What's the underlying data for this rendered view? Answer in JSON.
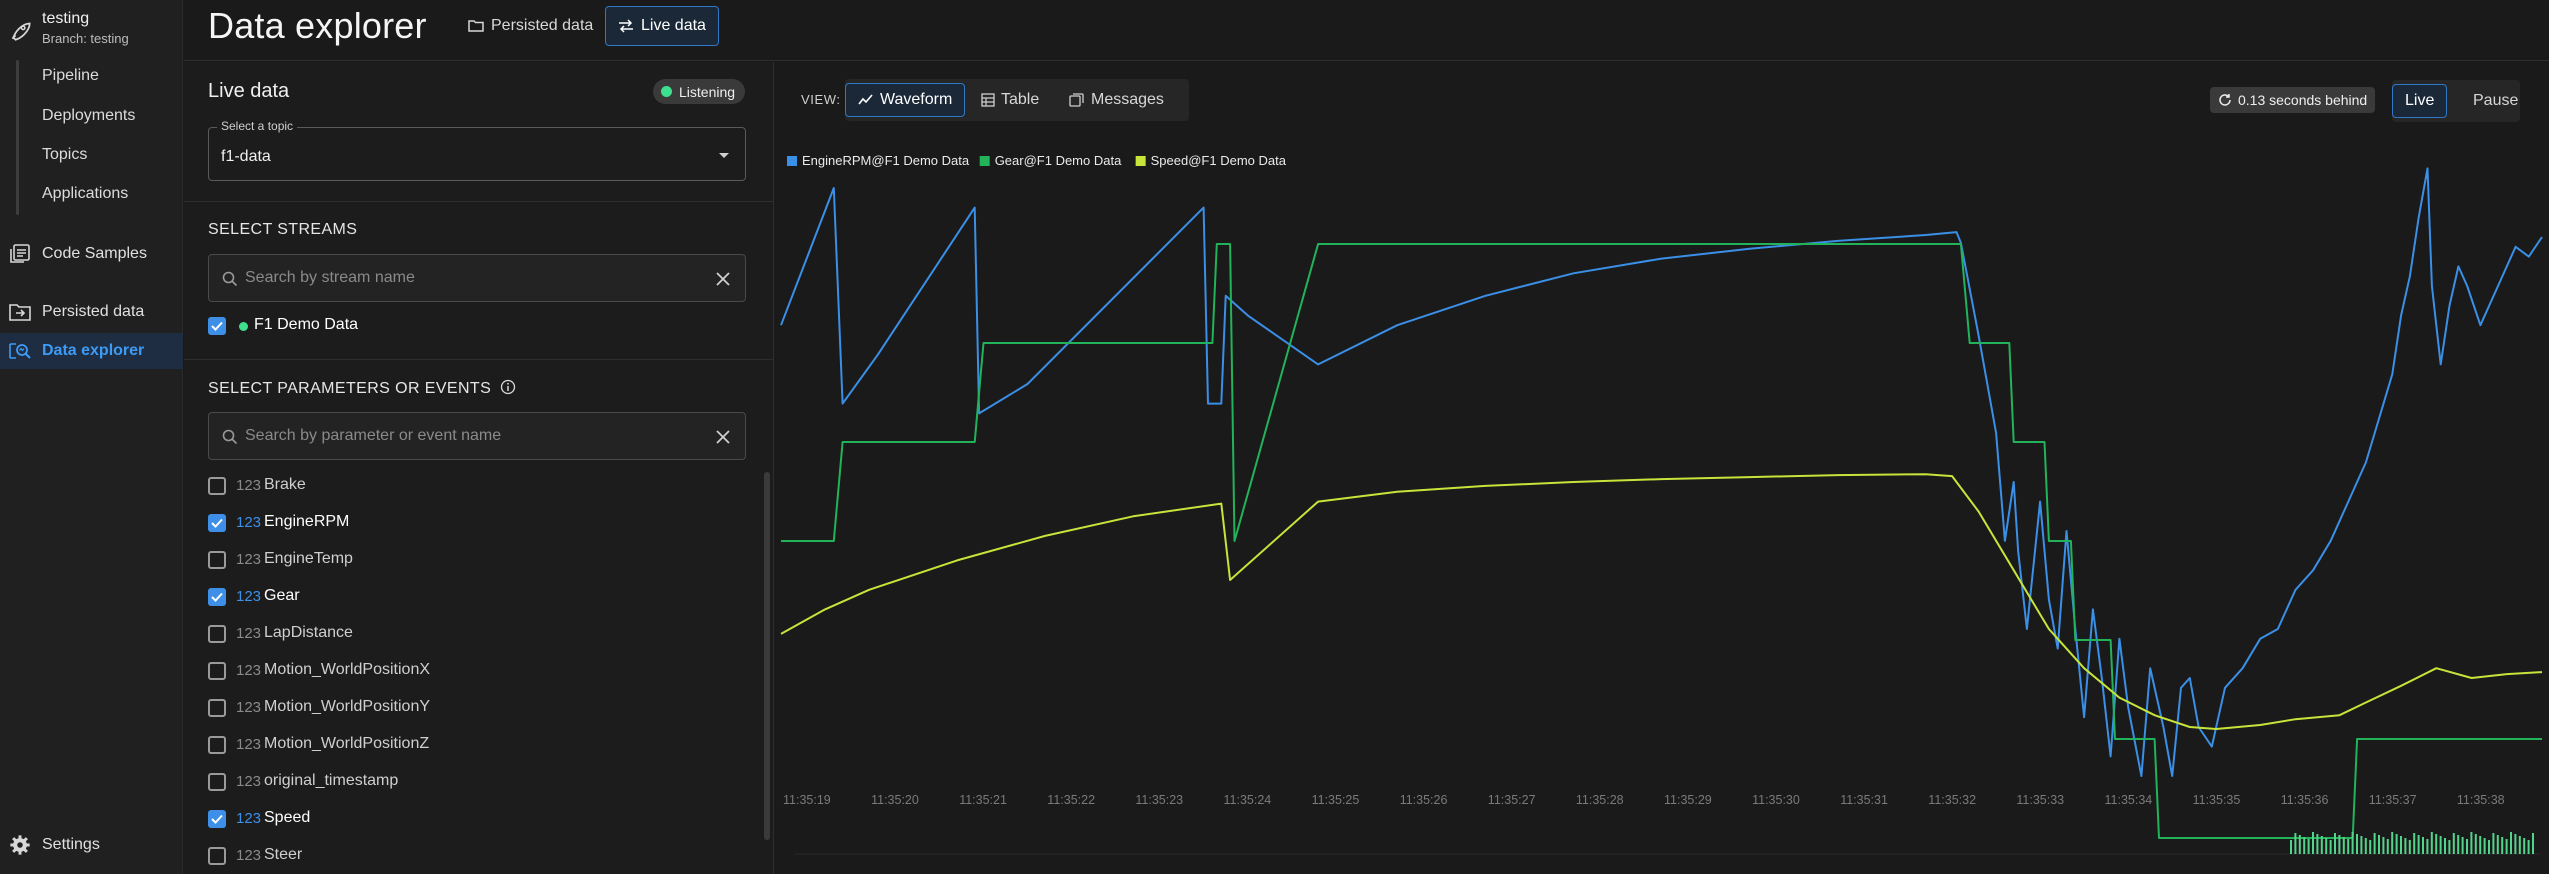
{
  "app": {
    "project_name": "testing",
    "branch": "Branch: testing"
  },
  "sidebar": {
    "sub_items": [
      {
        "label": "Pipeline"
      },
      {
        "label": "Deployments"
      },
      {
        "label": "Topics"
      },
      {
        "label": "Applications"
      }
    ],
    "items": [
      {
        "label": "Code Samples",
        "icon": "code-samples-icon"
      },
      {
        "label": "Persisted data",
        "icon": "persisted-data-icon"
      },
      {
        "label": "Data explorer",
        "icon": "data-explorer-icon",
        "active": true
      }
    ],
    "settings_label": "Settings"
  },
  "header": {
    "title": "Data explorer",
    "tabs": [
      {
        "label": "Persisted data",
        "icon": "folder-icon",
        "active": false
      },
      {
        "label": "Live data",
        "icon": "swap-arrows-icon",
        "active": true
      }
    ]
  },
  "left_panel": {
    "title": "Live data",
    "status_badge": "Listening",
    "topic_select": {
      "label": "Select a topic",
      "value": "f1-data"
    },
    "streams": {
      "heading": "SELECT STREAMS",
      "search_placeholder": "Search by stream name",
      "items": [
        {
          "label": "F1 Demo Data",
          "checked": true,
          "status_color": "#3ee08f"
        }
      ]
    },
    "parameters": {
      "heading": "SELECT PARAMETERS OR EVENTS",
      "search_placeholder": "Search by parameter or event name",
      "type_glyph": "123",
      "items": [
        {
          "label": "Brake",
          "checked": false
        },
        {
          "label": "EngineRPM",
          "checked": true
        },
        {
          "label": "EngineTemp",
          "checked": false
        },
        {
          "label": "Gear",
          "checked": true
        },
        {
          "label": "LapDistance",
          "checked": false
        },
        {
          "label": "Motion_WorldPositionX",
          "checked": false
        },
        {
          "label": "Motion_WorldPositionY",
          "checked": false
        },
        {
          "label": "Motion_WorldPositionZ",
          "checked": false
        },
        {
          "label": "original_timestamp",
          "checked": false
        },
        {
          "label": "Speed",
          "checked": true
        },
        {
          "label": "Steer",
          "checked": false
        }
      ]
    }
  },
  "toolbar": {
    "view_label": "VIEW:",
    "views": [
      {
        "label": "Waveform",
        "icon": "waveform-icon",
        "active": true
      },
      {
        "label": "Table",
        "icon": "table-icon",
        "active": false
      },
      {
        "label": "Messages",
        "icon": "messages-icon",
        "active": false
      }
    ],
    "behind_text": "0.13 seconds behind",
    "live_label": "Live",
    "pause_label": "Pause"
  },
  "colors": {
    "accent": "#3d8fe8",
    "engine_rpm": "#3a8fe6",
    "gear": "#22b35a",
    "speed": "#c6e43a"
  },
  "chart_data": {
    "type": "line",
    "legend_position": "top-left",
    "x_ticks": [
      "11:35:19",
      "11:35:20",
      "11:35:21",
      "11:35:22",
      "11:35:23",
      "11:35:24",
      "11:35:25",
      "11:35:26",
      "11:35:27",
      "11:35:28",
      "11:35:29",
      "11:35:30",
      "11:35:31",
      "11:35:32",
      "11:35:33",
      "11:35:34",
      "11:35:35",
      "11:35:36",
      "11:35:37",
      "11:35:38"
    ],
    "x_range": [
      19.0,
      39.0
    ],
    "series": [
      {
        "name": "EngineRPM@F1 Demo Data",
        "color": "#3a8fe6",
        "points": [
          [
            19.0,
            0.66
          ],
          [
            19.6,
            0.8
          ],
          [
            19.7,
            0.58
          ],
          [
            20.1,
            0.63
          ],
          [
            21.2,
            0.78
          ],
          [
            21.25,
            0.57
          ],
          [
            21.8,
            0.6
          ],
          [
            23.8,
            0.78
          ],
          [
            23.85,
            0.58
          ],
          [
            24.0,
            0.58
          ],
          [
            24.05,
            0.69
          ],
          [
            24.3,
            0.67
          ],
          [
            25.1,
            0.62
          ],
          [
            26.0,
            0.66
          ],
          [
            27.0,
            0.69
          ],
          [
            28.0,
            0.713
          ],
          [
            29.0,
            0.728
          ],
          [
            30.0,
            0.738
          ],
          [
            31.0,
            0.746
          ],
          [
            32.0,
            0.752
          ],
          [
            32.35,
            0.755
          ],
          [
            32.4,
            0.744
          ],
          [
            32.6,
            0.65
          ],
          [
            32.8,
            0.55
          ],
          [
            32.9,
            0.44
          ],
          [
            33.0,
            0.5
          ],
          [
            33.05,
            0.43
          ],
          [
            33.15,
            0.35
          ],
          [
            33.3,
            0.48
          ],
          [
            33.4,
            0.38
          ],
          [
            33.5,
            0.33
          ],
          [
            33.6,
            0.45
          ],
          [
            33.7,
            0.35
          ],
          [
            33.8,
            0.26
          ],
          [
            33.9,
            0.37
          ],
          [
            34.0,
            0.3
          ],
          [
            34.1,
            0.22
          ],
          [
            34.2,
            0.34
          ],
          [
            34.3,
            0.27
          ],
          [
            34.45,
            0.2
          ],
          [
            34.55,
            0.31
          ],
          [
            34.7,
            0.25
          ],
          [
            34.8,
            0.2
          ],
          [
            34.9,
            0.29
          ],
          [
            35.0,
            0.3
          ],
          [
            35.1,
            0.25
          ],
          [
            35.25,
            0.23
          ],
          [
            35.4,
            0.29
          ],
          [
            35.6,
            0.31
          ],
          [
            35.8,
            0.34
          ],
          [
            36.0,
            0.35
          ],
          [
            36.2,
            0.39
          ],
          [
            36.4,
            0.41
          ],
          [
            36.6,
            0.44
          ],
          [
            36.8,
            0.48
          ],
          [
            37.0,
            0.52
          ],
          [
            37.2,
            0.58
          ],
          [
            37.3,
            0.61
          ],
          [
            37.4,
            0.67
          ],
          [
            37.5,
            0.71
          ],
          [
            37.6,
            0.77
          ],
          [
            37.7,
            0.82
          ],
          [
            37.75,
            0.7
          ],
          [
            37.85,
            0.62
          ],
          [
            37.95,
            0.68
          ],
          [
            38.05,
            0.72
          ],
          [
            38.15,
            0.7
          ],
          [
            38.3,
            0.66
          ],
          [
            38.5,
            0.7
          ],
          [
            38.7,
            0.74
          ],
          [
            38.85,
            0.73
          ],
          [
            39.0,
            0.75
          ]
        ]
      },
      {
        "name": "Gear@F1 Demo Data",
        "color": "#22b35a",
        "points": [
          [
            19.0,
            4
          ],
          [
            19.6,
            4
          ],
          [
            19.7,
            5
          ],
          [
            21.2,
            5
          ],
          [
            21.3,
            6
          ],
          [
            23.9,
            6
          ],
          [
            23.95,
            7
          ],
          [
            24.1,
            7
          ],
          [
            24.15,
            4
          ],
          [
            25.1,
            7
          ],
          [
            32.4,
            7
          ],
          [
            32.5,
            6
          ],
          [
            32.95,
            6
          ],
          [
            33.0,
            5
          ],
          [
            33.35,
            5
          ],
          [
            33.4,
            4
          ],
          [
            33.65,
            4
          ],
          [
            33.7,
            3
          ],
          [
            34.1,
            3
          ],
          [
            34.15,
            2
          ],
          [
            34.6,
            2
          ],
          [
            34.65,
            1
          ],
          [
            36.85,
            1
          ],
          [
            36.9,
            2
          ],
          [
            38.85,
            2
          ],
          [
            39.0,
            2
          ]
        ]
      },
      {
        "name": "Speed@F1 Demo Data",
        "color": "#c6e43a",
        "points": [
          [
            19.0,
            0.345
          ],
          [
            19.5,
            0.37
          ],
          [
            20.0,
            0.39
          ],
          [
            21.0,
            0.42
          ],
          [
            22.0,
            0.445
          ],
          [
            23.0,
            0.465
          ],
          [
            24.0,
            0.478
          ],
          [
            24.1,
            0.4
          ],
          [
            25.1,
            0.48
          ],
          [
            26.0,
            0.49
          ],
          [
            27.0,
            0.496
          ],
          [
            28.0,
            0.5
          ],
          [
            29.0,
            0.503
          ],
          [
            30.0,
            0.505
          ],
          [
            31.0,
            0.507
          ],
          [
            32.0,
            0.508
          ],
          [
            32.3,
            0.506
          ],
          [
            32.6,
            0.47
          ],
          [
            33.0,
            0.41
          ],
          [
            33.4,
            0.35
          ],
          [
            33.8,
            0.31
          ],
          [
            34.2,
            0.28
          ],
          [
            34.6,
            0.262
          ],
          [
            35.0,
            0.25
          ],
          [
            35.3,
            0.248
          ],
          [
            35.8,
            0.252
          ],
          [
            36.2,
            0.258
          ],
          [
            36.7,
            0.262
          ],
          [
            37.0,
            0.275
          ],
          [
            37.4,
            0.292
          ],
          [
            37.8,
            0.31
          ],
          [
            38.2,
            0.3
          ],
          [
            38.6,
            0.304
          ],
          [
            39.0,
            0.306
          ]
        ]
      }
    ]
  }
}
